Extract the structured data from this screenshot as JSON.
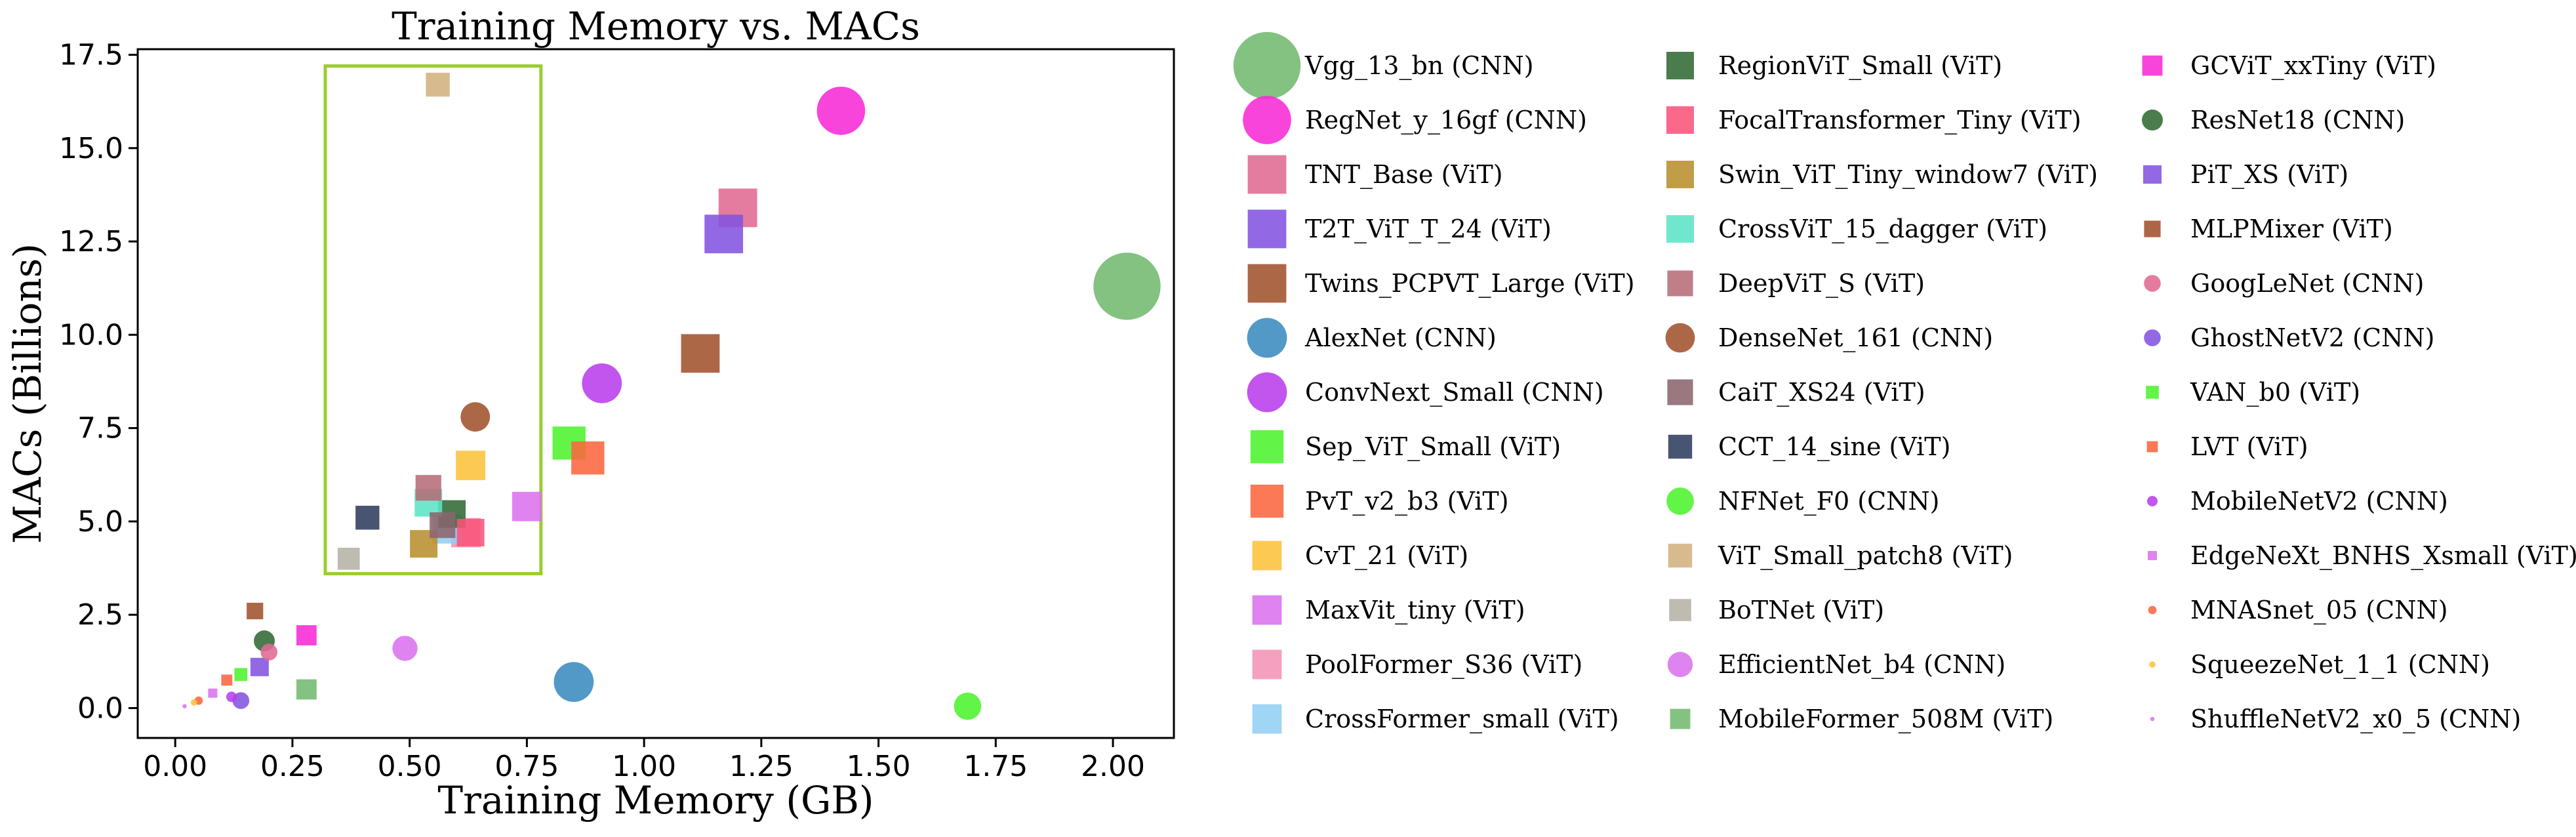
{
  "chart_data": {
    "type": "scatter",
    "title": "Training  Memory vs. MACs",
    "xlabel": "Training  Memory (GB)",
    "ylabel": "MACs (Billions)",
    "xlim": [
      -0.08,
      2.13
    ],
    "ylim": [
      -0.8,
      17.65
    ],
    "xticks": [
      0.0,
      0.25,
      0.5,
      0.75,
      1.0,
      1.25,
      1.5,
      1.75,
      2.0
    ],
    "xtick_labels": [
      "0.00",
      "0.25",
      "0.50",
      "0.75",
      "1.00",
      "1.25",
      "1.50",
      "1.75",
      "2.00"
    ],
    "yticks": [
      0.0,
      2.5,
      5.0,
      7.5,
      10.0,
      12.5,
      15.0,
      17.5
    ],
    "ytick_labels": [
      "0.0",
      "2.5",
      "5.0",
      "7.5",
      "10.0",
      "12.5",
      "15.0",
      "17.5"
    ],
    "grid": false,
    "legend_placement": "right, 3 columns",
    "highlight_box": {
      "x": [
        0.32,
        0.78
      ],
      "y": [
        3.6,
        17.2
      ],
      "color": "#9ACD32"
    },
    "series": [
      {
        "name": "Vgg_13_bn (CNN)",
        "marker": "circle",
        "color": "#72B96F",
        "size": 32,
        "x": 2.03,
        "y": 11.3
      },
      {
        "name": "RegNet_y_16gf (CNN)",
        "marker": "circle",
        "color": "#F72AD6",
        "size": 23,
        "x": 1.42,
        "y": 16.0
      },
      {
        "name": "TNT_Base (ViT)",
        "marker": "square",
        "color": "#E06A93",
        "size": 21,
        "x": 1.2,
        "y": 13.4
      },
      {
        "name": "T2T_ViT_T_24 (ViT)",
        "marker": "square",
        "color": "#8353E0",
        "size": 21,
        "x": 1.17,
        "y": 12.7
      },
      {
        "name": "Twins_PCPVT_Large (ViT)",
        "marker": "square",
        "color": "#A0522D",
        "size": 21,
        "x": 1.12,
        "y": 9.5
      },
      {
        "name": "AlexNet (CNN)",
        "marker": "circle",
        "color": "#3A8BC0",
        "size": 19,
        "x": 0.85,
        "y": 0.7
      },
      {
        "name": "ConvNext_Small (CNN)",
        "marker": "circle",
        "color": "#B93DEA",
        "size": 19,
        "x": 0.91,
        "y": 8.7
      },
      {
        "name": "Sep_ViT_Small (ViT)",
        "marker": "square",
        "color": "#4CF22E",
        "size": 18,
        "x": 0.84,
        "y": 7.1
      },
      {
        "name": "PvT_v2_b3 (ViT)",
        "marker": "square",
        "color": "#FA6640",
        "size": 18,
        "x": 0.88,
        "y": 6.7
      },
      {
        "name": "CvT_21 (ViT)",
        "marker": "square",
        "color": "#FCC13A",
        "size": 16,
        "x": 0.63,
        "y": 6.5
      },
      {
        "name": "MaxVit_tiny (ViT)",
        "marker": "square",
        "color": "#DB72EE",
        "size": 16,
        "x": 0.75,
        "y": 5.4
      },
      {
        "name": "PoolFormer_S36 (ViT)",
        "marker": "square",
        "color": "#F493B5",
        "size": 16,
        "x": 0.62,
        "y": 4.7
      },
      {
        "name": "CrossFormer_small (ViT)",
        "marker": "square",
        "color": "#92CFF4",
        "size": 16,
        "x": 0.58,
        "y": 4.8
      },
      {
        "name": "RegionViT_Small (ViT)",
        "marker": "square",
        "color": "#316A34",
        "size": 15,
        "x": 0.59,
        "y": 5.2
      },
      {
        "name": "FocalTransformer_Tiny (ViT)",
        "marker": "square",
        "color": "#F9547A",
        "size": 15,
        "x": 0.63,
        "y": 4.7
      },
      {
        "name": "Swin_ViT_Tiny_window7 (ViT)",
        "marker": "square",
        "color": "#B8902E",
        "size": 15,
        "x": 0.53,
        "y": 4.4
      },
      {
        "name": "CrossViT_15_dagger (ViT)",
        "marker": "square",
        "color": "#5CE4C6",
        "size": 15,
        "x": 0.54,
        "y": 5.5
      },
      {
        "name": "DeepViT_S (ViT)",
        "marker": "square",
        "color": "#B76C77",
        "size": 14,
        "x": 0.54,
        "y": 5.9
      },
      {
        "name": "DenseNet_161 (CNN)",
        "marker": "circle",
        "color": "#A0522D",
        "size": 14,
        "x": 0.64,
        "y": 7.8
      },
      {
        "name": "CaiT_XS24 (ViT)",
        "marker": "square",
        "color": "#8C656E",
        "size": 14,
        "x": 0.57,
        "y": 4.9
      },
      {
        "name": "CCT_14_sine (ViT)",
        "marker": "square",
        "color": "#2E3E5E",
        "size": 13,
        "x": 0.41,
        "y": 5.1
      },
      {
        "name": "NFNet_F0 (CNN)",
        "marker": "circle",
        "color": "#4CF22E",
        "size": 13,
        "x": 1.69,
        "y": 0.05
      },
      {
        "name": "ViT_Small_patch8 (ViT)",
        "marker": "square",
        "color": "#D2B280",
        "size": 13,
        "x": 0.56,
        "y": 16.7
      },
      {
        "name": "BoTNet (ViT)",
        "marker": "square",
        "color": "#B5B2A6",
        "size": 12,
        "x": 0.37,
        "y": 4.0
      },
      {
        "name": "EfficientNet_b4 (CNN)",
        "marker": "circle",
        "color": "#DB72EE",
        "size": 12,
        "x": 0.49,
        "y": 1.6
      },
      {
        "name": "MobileFormer_508M (ViT)",
        "marker": "square",
        "color": "#72B96F",
        "size": 11,
        "x": 0.28,
        "y": 0.5
      },
      {
        "name": "GCViT_xxTiny (ViT)",
        "marker": "square",
        "color": "#F72AD6",
        "size": 11,
        "x": 0.28,
        "y": 1.95
      },
      {
        "name": "ResNet18 (CNN)",
        "marker": "circle",
        "color": "#316A34",
        "size": 10,
        "x": 0.19,
        "y": 1.8
      },
      {
        "name": "PiT_XS (ViT)",
        "marker": "square",
        "color": "#8353E0",
        "size": 10,
        "x": 0.18,
        "y": 1.1
      },
      {
        "name": "MLPMixer (ViT)",
        "marker": "square",
        "color": "#A0522D",
        "size": 9,
        "x": 0.17,
        "y": 2.6
      },
      {
        "name": "GoogLeNet (CNN)",
        "marker": "circle",
        "color": "#E06A93",
        "size": 8,
        "x": 0.2,
        "y": 1.5
      },
      {
        "name": "GhostNetV2 (CNN)",
        "marker": "circle",
        "color": "#8353E0",
        "size": 8,
        "x": 0.14,
        "y": 0.2
      },
      {
        "name": "VAN_b0 (ViT)",
        "marker": "square",
        "color": "#4CF22E",
        "size": 7,
        "x": 0.14,
        "y": 0.9
      },
      {
        "name": "LVT (ViT)",
        "marker": "square",
        "color": "#FA6640",
        "size": 6,
        "x": 0.11,
        "y": 0.75
      },
      {
        "name": "MobileNetV2 (CNN)",
        "marker": "circle",
        "color": "#B93DEA",
        "size": 5,
        "x": 0.12,
        "y": 0.3
      },
      {
        "name": "EdgeNeXt_BNHS_Xsmall (ViT)",
        "marker": "square",
        "color": "#DB72EE",
        "size": 5,
        "x": 0.08,
        "y": 0.4
      },
      {
        "name": "MNASnet_05 (CNN)",
        "marker": "circle",
        "color": "#FA6640",
        "size": 4,
        "x": 0.05,
        "y": 0.2
      },
      {
        "name": "SqueezeNet_1_1 (CNN)",
        "marker": "circle",
        "color": "#FCC13A",
        "size": 3,
        "x": 0.04,
        "y": 0.15
      },
      {
        "name": "ShuffleNetV2_x0_5 (CNN)",
        "marker": "circle",
        "color": "#DB72EE",
        "size": 2,
        "x": 0.02,
        "y": 0.05
      }
    ]
  }
}
